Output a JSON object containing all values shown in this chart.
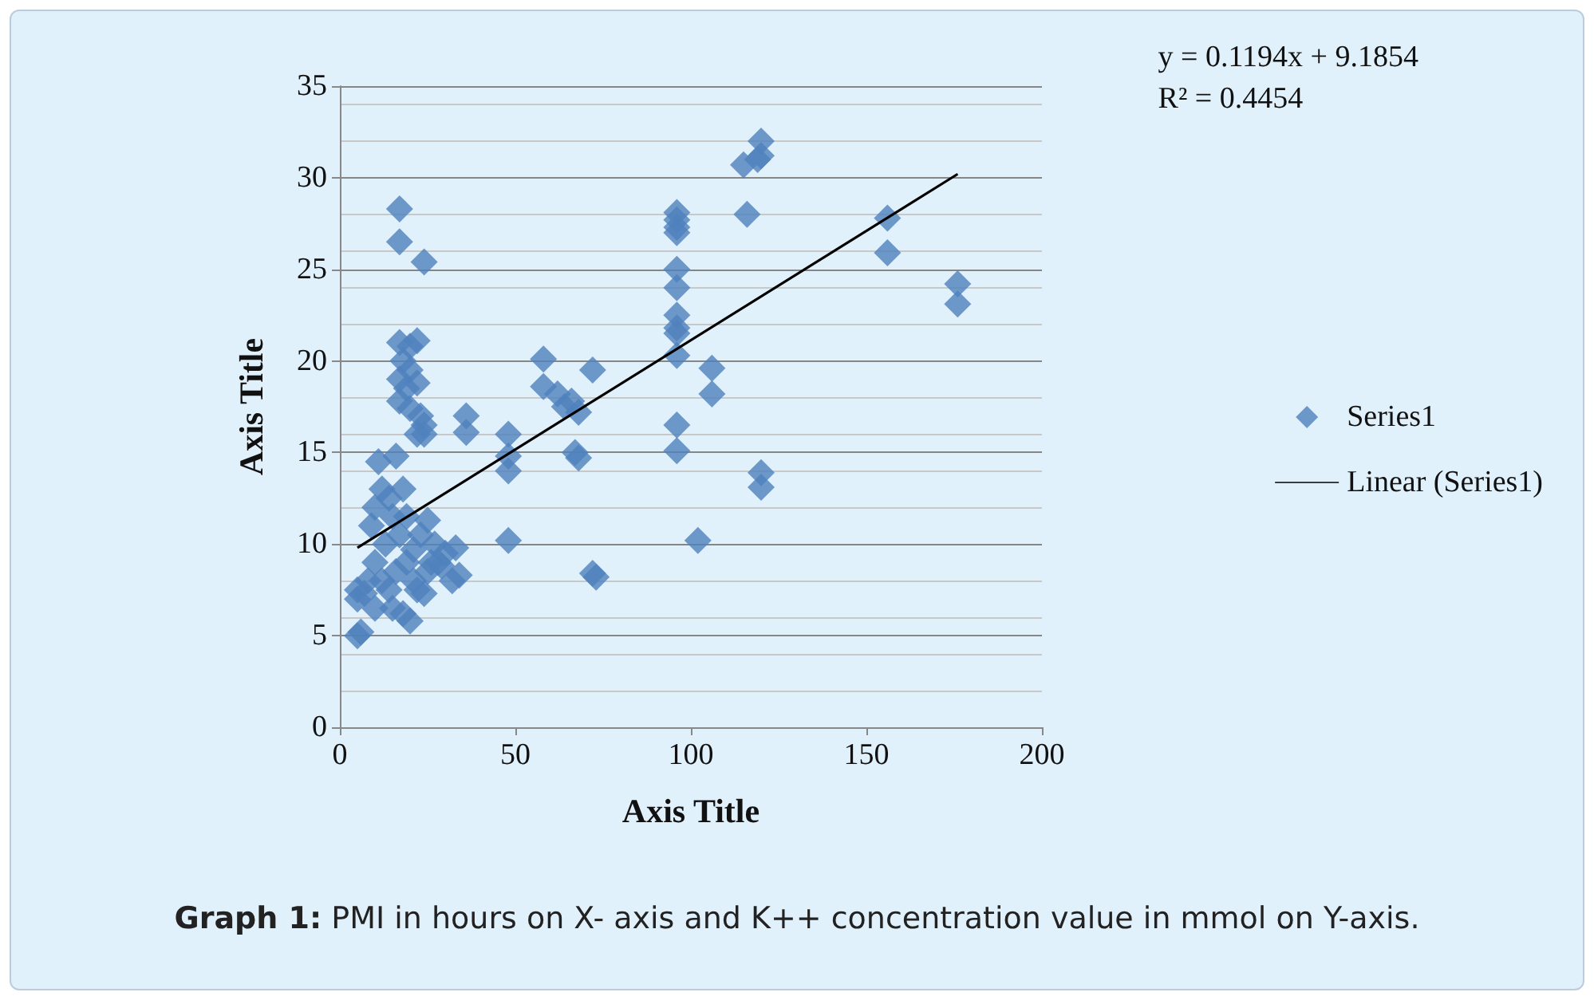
{
  "chart_data": {
    "type": "scatter",
    "xlabel": "Axis Title",
    "ylabel": "Axis Title",
    "xlim": [
      0,
      200
    ],
    "xticks": [
      0,
      50,
      100,
      150,
      200
    ],
    "ylim": [
      0,
      35
    ],
    "yticks": [
      0,
      5,
      10,
      15,
      20,
      25,
      30,
      35
    ],
    "grid": "y",
    "legend": "right",
    "marker": "diamond",
    "annotations": [
      "y = 0.1194x + 9.1854\nR² = 0.4454",
      "Graph 1: PMI in hours on X- axis and K++ concentration value in mmol on Y-axis."
    ],
    "series": [
      {
        "name": "Series1",
        "color": "#4f81bd",
        "x": [
          48,
          48,
          48,
          48,
          58,
          58,
          62,
          64,
          66,
          68,
          67,
          68,
          72,
          72,
          73,
          96,
          96,
          96,
          96,
          96,
          96,
          96,
          96,
          96,
          96,
          96,
          96,
          102,
          106,
          106,
          115,
          116,
          119,
          120,
          120,
          120,
          120,
          156,
          156,
          176,
          176,
          36,
          36,
          17,
          17,
          24,
          17,
          20,
          22,
          18,
          20,
          17,
          19,
          22,
          17,
          20,
          23,
          24,
          24,
          22,
          5,
          5,
          7,
          5,
          6,
          10,
          15,
          20,
          18,
          11,
          16,
          9,
          10,
          12,
          14,
          15,
          18,
          13,
          17,
          19,
          21,
          23,
          25,
          27,
          30,
          33,
          34,
          32,
          28,
          25,
          22,
          24,
          10,
          12,
          14,
          8,
          16,
          19,
          21,
          26,
          29
        ],
        "values": [
          16,
          14.8,
          14,
          10.2,
          20.1,
          18.6,
          18.2,
          17.5,
          17.8,
          17.2,
          15,
          14.7,
          19.5,
          8.4,
          8.2,
          28.1,
          27.7,
          27.3,
          27,
          25,
          24,
          22.5,
          21.8,
          21.5,
          20.3,
          16.5,
          15.1,
          10.2,
          19.6,
          18.2,
          30.7,
          28,
          31,
          32,
          31.2,
          13.9,
          13.1,
          27.8,
          25.9,
          24.2,
          23.1,
          17,
          16.1,
          28.3,
          26.5,
          25.4,
          21,
          20.8,
          21.1,
          20,
          19.5,
          19,
          18.5,
          18.8,
          17.8,
          17.4,
          17,
          16.5,
          16,
          16,
          7.5,
          7,
          7.3,
          5,
          5.2,
          6.5,
          6.5,
          5.8,
          6.2,
          14.5,
          14.8,
          11,
          12,
          13,
          12.5,
          11.5,
          13,
          10,
          10.5,
          9,
          8,
          10.5,
          11.3,
          10,
          9.5,
          9.8,
          8.3,
          8,
          9,
          8.5,
          7.5,
          7.3,
          9,
          8,
          7.5,
          8,
          8.5,
          11.5,
          9.7,
          9,
          8.8
        ]
      },
      {
        "name": "Linear (Series1)",
        "type": "line",
        "color": "#000000",
        "marker": "none",
        "x": [
          5,
          176
        ],
        "values": [
          9.8,
          30.2
        ]
      }
    ]
  }
}
